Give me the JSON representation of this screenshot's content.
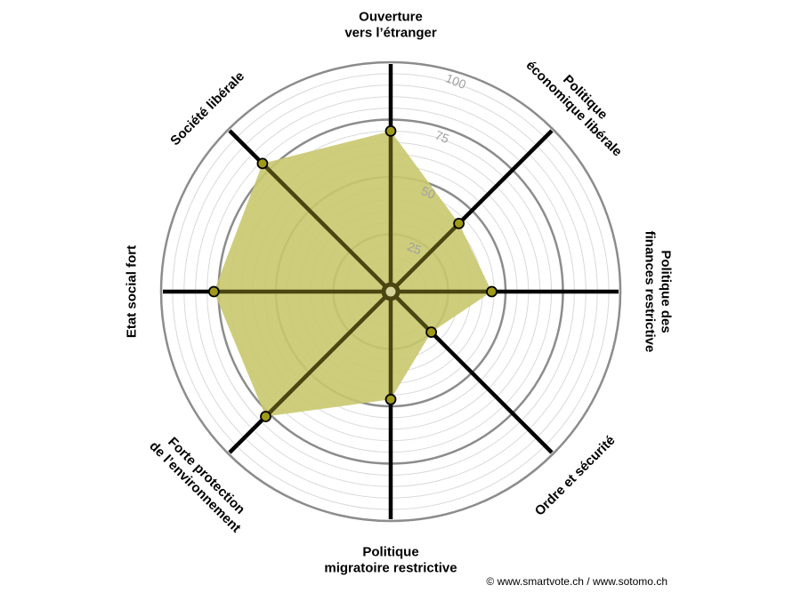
{
  "chart_data": {
    "type": "radar",
    "title": "",
    "axes": [
      {
        "lines": [
          "Ouverture",
          "vers l’étranger"
        ],
        "value": 70
      },
      {
        "lines": [
          "Politique",
          "économique libérale"
        ],
        "value": 42
      },
      {
        "lines": [
          "Politique des",
          "finances restrictive"
        ],
        "value": 44
      },
      {
        "lines": [
          "Ordre et sécurité"
        ],
        "value": 25
      },
      {
        "lines": [
          "Politique",
          "migratoire restrictive"
        ],
        "value": 47
      },
      {
        "lines": [
          "Forte protection",
          "de l’environnement"
        ],
        "value": 77
      },
      {
        "lines": [
          "Etat social fort"
        ],
        "value": 77
      },
      {
        "lines": [
          "Société libérale"
        ],
        "value": 79
      }
    ],
    "ticks": [
      25,
      50,
      75,
      100
    ],
    "range": [
      0,
      100
    ],
    "minor_step": 5,
    "colors": {
      "fill": "#c9c86e",
      "point": "#a09a18",
      "spoke_outer": "#000000",
      "spoke_inner": "#4a4612",
      "grid_major": "#8c8c8c",
      "grid_minor": "#d9d9d9",
      "tick_text": "#a0a0a0"
    }
  },
  "footer": {
    "copyright": "© www.smartvote.ch / www.sotomo.ch"
  }
}
